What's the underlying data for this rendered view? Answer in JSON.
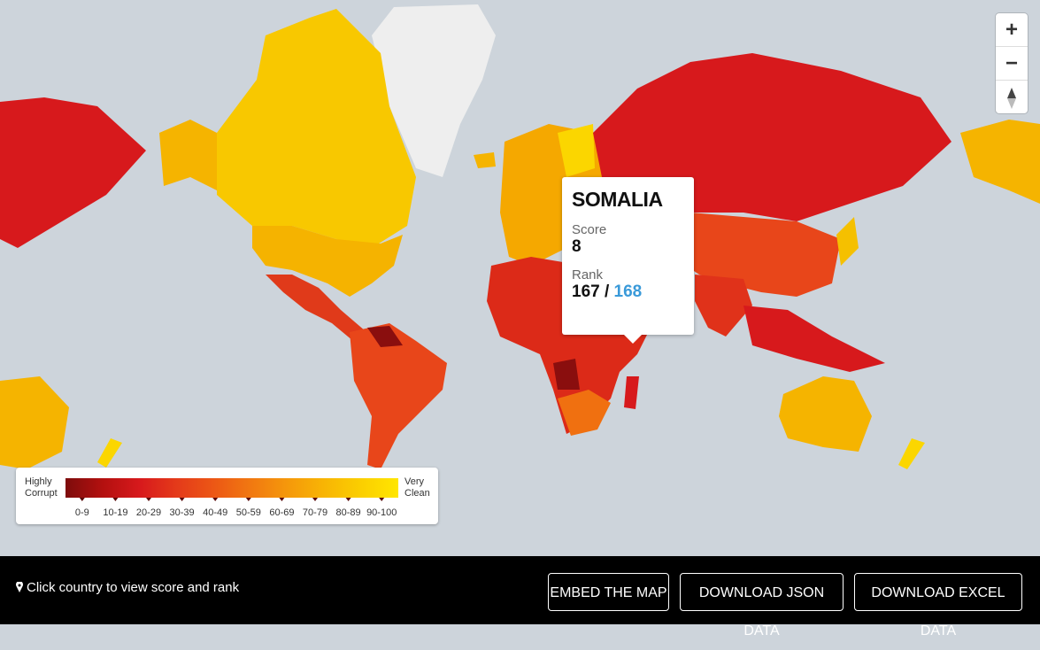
{
  "tooltip": {
    "country": "SOMALIA",
    "score_label": "Score",
    "score": 8,
    "rank_label": "Rank",
    "rank": 167,
    "separator": "/",
    "rank_total": 168
  },
  "legend": {
    "low_label": "Highly Corrupt",
    "high_label": "Very Clean",
    "bands": [
      {
        "label": "0-9",
        "color": "#7d0c0c"
      },
      {
        "label": "10-19",
        "color": "#b3100f"
      },
      {
        "label": "20-29",
        "color": "#d7191c"
      },
      {
        "label": "30-39",
        "color": "#e43a1a"
      },
      {
        "label": "40-49",
        "color": "#ec5715"
      },
      {
        "label": "50-59",
        "color": "#f17811"
      },
      {
        "label": "60-69",
        "color": "#f5980b"
      },
      {
        "label": "70-79",
        "color": "#f8b504"
      },
      {
        "label": "80-89",
        "color": "#fbcf00"
      },
      {
        "label": "90-100",
        "color": "#ffe600"
      }
    ]
  },
  "controls": {
    "zoom_in": "+",
    "zoom_out": "−"
  },
  "footer": {
    "hint": "Click country to view score and rank",
    "buttons": [
      "EMBED THE MAP",
      "DOWNLOAD JSON DATA",
      "DOWNLOAD EXCEL DATA"
    ]
  }
}
